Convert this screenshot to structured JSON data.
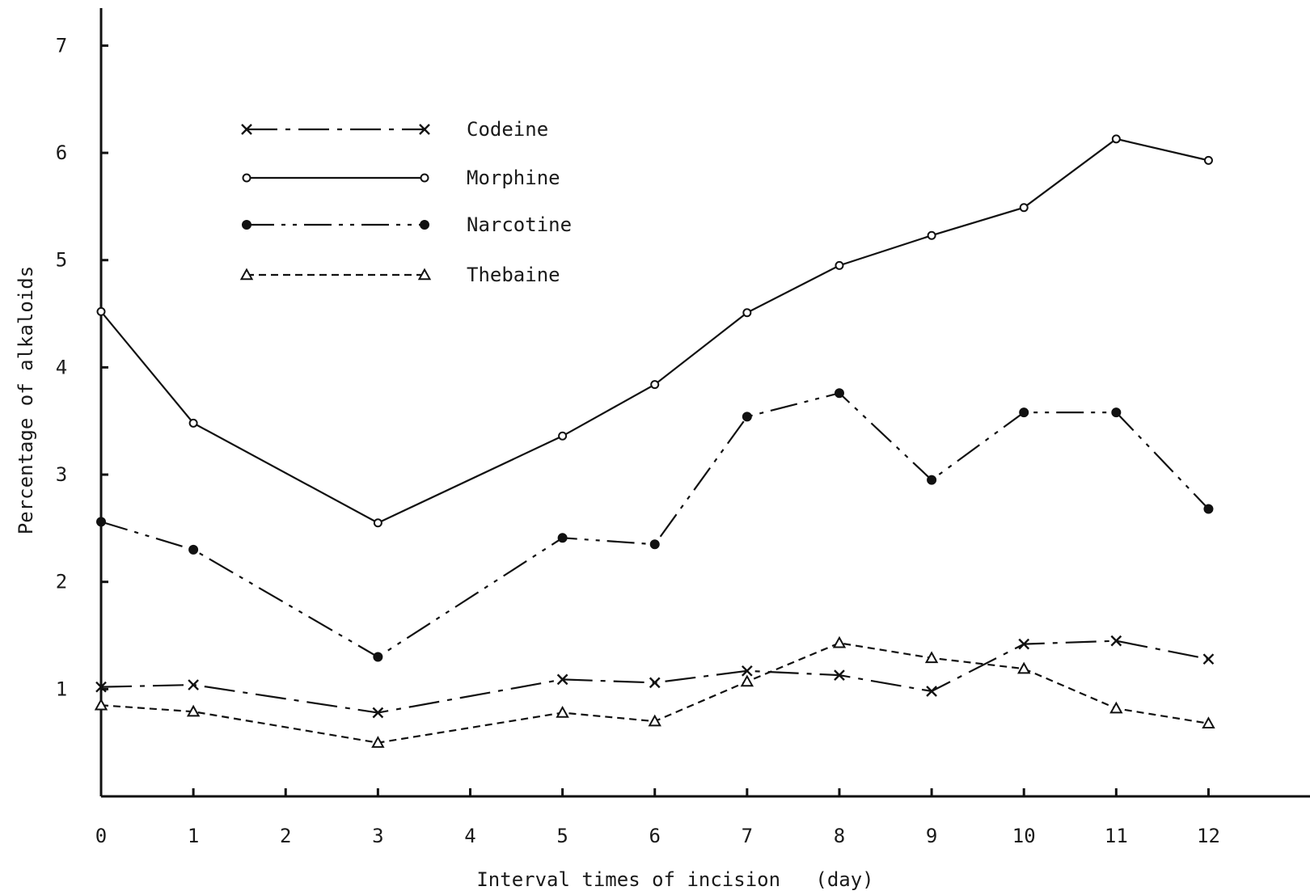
{
  "chart_data": {
    "type": "line",
    "title": "",
    "xlabel": "Interval times of incision   (day)",
    "ylabel": "Percentage of alkaloids",
    "x_ticks": [
      0,
      1,
      2,
      3,
      4,
      5,
      6,
      7,
      8,
      9,
      10,
      11,
      12
    ],
    "y_ticks": [
      1,
      2,
      3,
      4,
      5,
      6,
      7
    ],
    "xlim": [
      0,
      13.1
    ],
    "ylim": [
      0,
      7.35
    ],
    "grid": false,
    "legend_position": "top-left",
    "series": [
      {
        "name": "Codeine",
        "marker": "x",
        "line_style": "dash-dot",
        "x": [
          0,
          1,
          3,
          5,
          6,
          7,
          8,
          9,
          10,
          11,
          12
        ],
        "y": [
          1.02,
          1.04,
          0.78,
          1.09,
          1.06,
          1.17,
          1.13,
          0.98,
          1.42,
          1.45,
          1.28
        ]
      },
      {
        "name": "Morphine",
        "marker": "open-circle",
        "line_style": "solid",
        "x": [
          0,
          1,
          3,
          5,
          6,
          7,
          8,
          9,
          10,
          11,
          12
        ],
        "y": [
          4.52,
          3.48,
          2.55,
          3.36,
          3.84,
          4.51,
          4.95,
          5.23,
          5.49,
          6.13,
          5.93
        ]
      },
      {
        "name": "Narcotine",
        "marker": "filled-circle",
        "line_style": "dash-dot-dot",
        "x": [
          0,
          1,
          3,
          5,
          6,
          7,
          8,
          9,
          10,
          11,
          12
        ],
        "y": [
          2.56,
          2.3,
          1.3,
          2.41,
          2.35,
          3.54,
          3.76,
          2.95,
          3.58,
          3.58,
          2.68
        ]
      },
      {
        "name": "Thebaine",
        "marker": "open-triangle",
        "line_style": "dashed",
        "x": [
          0,
          1,
          3,
          5,
          6,
          7,
          8,
          9,
          10,
          11,
          12
        ],
        "y": [
          0.85,
          0.79,
          0.5,
          0.78,
          0.7,
          1.07,
          1.43,
          1.29,
          1.19,
          0.82,
          0.68
        ]
      }
    ]
  }
}
